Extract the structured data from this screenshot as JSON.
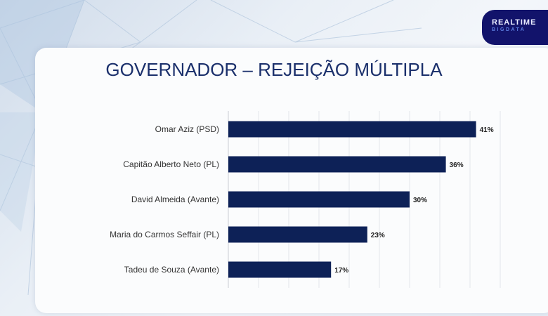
{
  "logo": {
    "line1": "REALTIME",
    "line2": "BIGDATA"
  },
  "chart_data": {
    "type": "bar",
    "orientation": "horizontal",
    "title": "GOVERNADOR – REJEIÇÃO MÚLTIPLA",
    "categories": [
      "Omar Aziz (PSD)",
      "Capitão Alberto Neto (PL)",
      "David Almeida (Avante)",
      "Maria do Carmos Seffair (PL)",
      "Tadeu de Souza (Avante)"
    ],
    "values": [
      41,
      36,
      30,
      23,
      17
    ],
    "labels": [
      "41%",
      "36%",
      "30%",
      "23%",
      "17%"
    ],
    "xlim": [
      0,
      45
    ],
    "grid_step": 5,
    "grid": true,
    "bar_color": "#0d2157",
    "xlabel": "",
    "ylabel": ""
  }
}
